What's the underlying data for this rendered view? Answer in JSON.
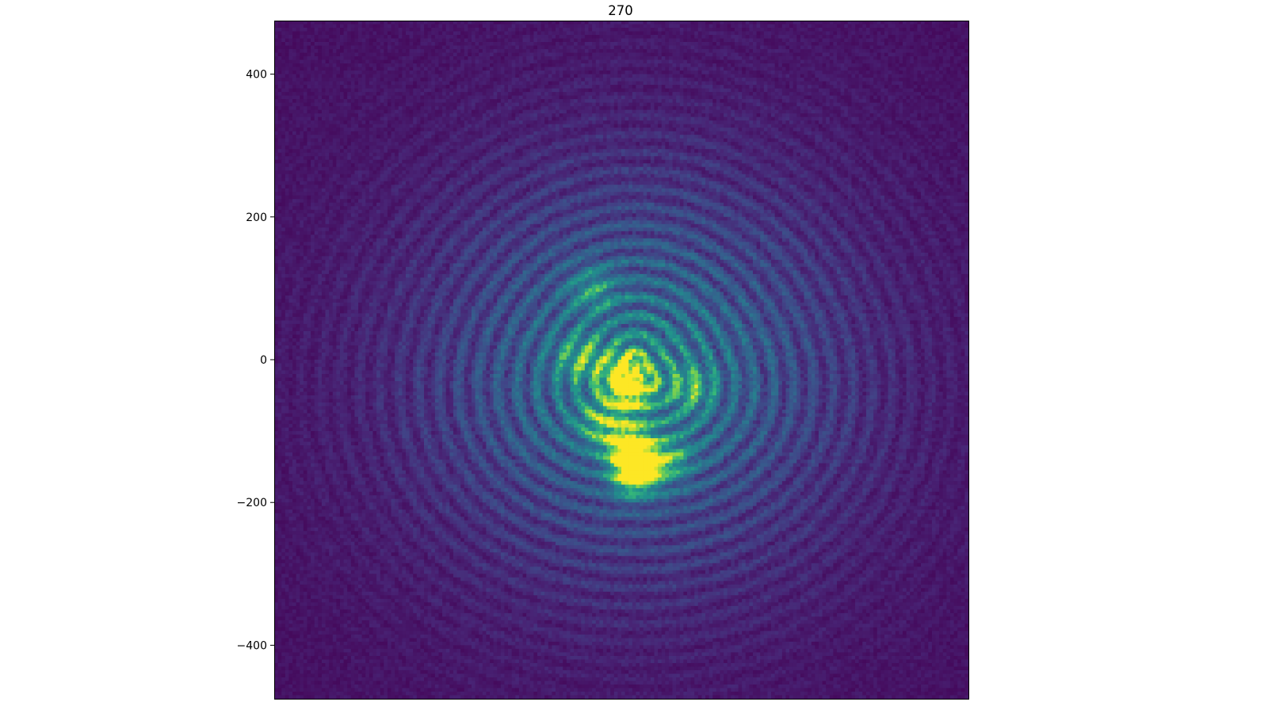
{
  "chart_data": {
    "type": "heatmap",
    "title": "270",
    "xlabel": "",
    "ylabel": "",
    "ylim": [
      -475,
      475
    ],
    "xlim": [
      -475,
      475
    ],
    "yticks": [
      400,
      200,
      0,
      -200,
      -400
    ],
    "ytick_labels": [
      "400",
      "200",
      "0",
      "−200",
      "−400"
    ],
    "grid": false,
    "colormap": "viridis",
    "bins": 190,
    "structure": {
      "pattern": "concentric rings with a bright central core",
      "center": [
        20,
        -20
      ],
      "ring_spacing": 27,
      "falloff_scale": 230,
      "hotspots": [
        {
          "x": 10,
          "y": -120,
          "intensity": 1.0
        },
        {
          "x": 15,
          "y": -160,
          "intensity": 0.95
        },
        {
          "x": 10,
          "y": -45,
          "intensity": 0.85
        },
        {
          "x": 30,
          "y": -150,
          "intensity": 0.8
        },
        {
          "x": 10,
          "y": -15,
          "intensity": 0.75
        },
        {
          "x": -55,
          "y": 0,
          "intensity": 0.6
        },
        {
          "x": 95,
          "y": -40,
          "intensity": 0.55
        },
        {
          "x": -30,
          "y": -90,
          "intensity": 0.55
        },
        {
          "x": 70,
          "y": -140,
          "intensity": 0.55
        },
        {
          "x": -40,
          "y": 100,
          "intensity": 0.5
        }
      ]
    },
    "colors": {
      "low": "#440154",
      "mid": "#21918c",
      "high": "#fde725"
    }
  }
}
